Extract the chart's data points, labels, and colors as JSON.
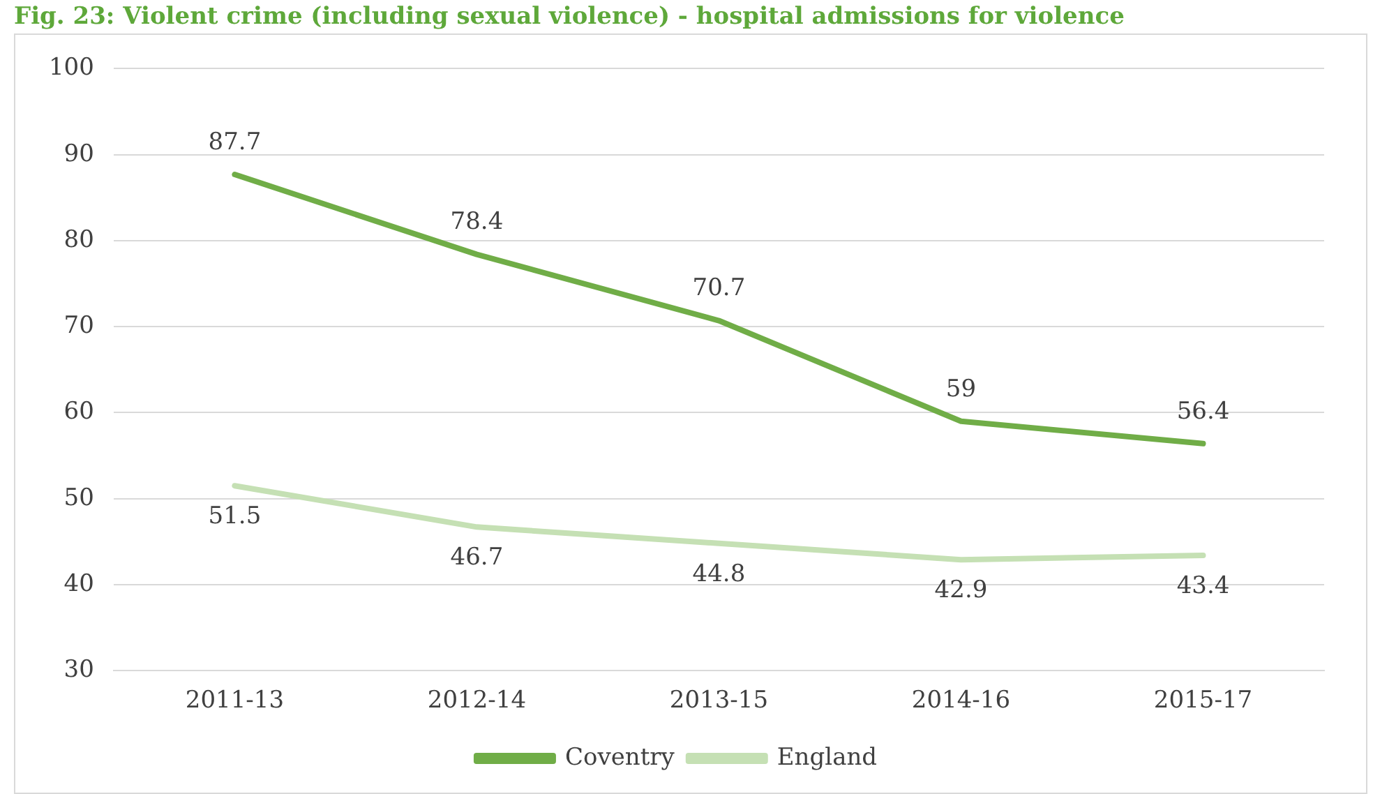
{
  "chart_data": {
    "type": "line",
    "title": "Fig. 23: Violent crime (including sexual violence) - hospital admissions for violence",
    "categories": [
      "2011-13",
      "2012-14",
      "2013-15",
      "2014-16",
      "2015-17"
    ],
    "series": [
      {
        "name": "Coventry",
        "color": "#70ad47",
        "values": [
          87.7,
          78.4,
          70.7,
          59,
          56.4
        ]
      },
      {
        "name": "England",
        "color": "#c5e0b4",
        "values": [
          51.5,
          46.7,
          44.8,
          42.9,
          43.4
        ]
      }
    ],
    "ylim": [
      30,
      100
    ],
    "yticks": [
      30,
      40,
      50,
      60,
      70,
      80,
      90,
      100
    ],
    "grid": "y",
    "legend": "bottom",
    "data_labels": true,
    "marker": "none",
    "line_style": "solid"
  }
}
